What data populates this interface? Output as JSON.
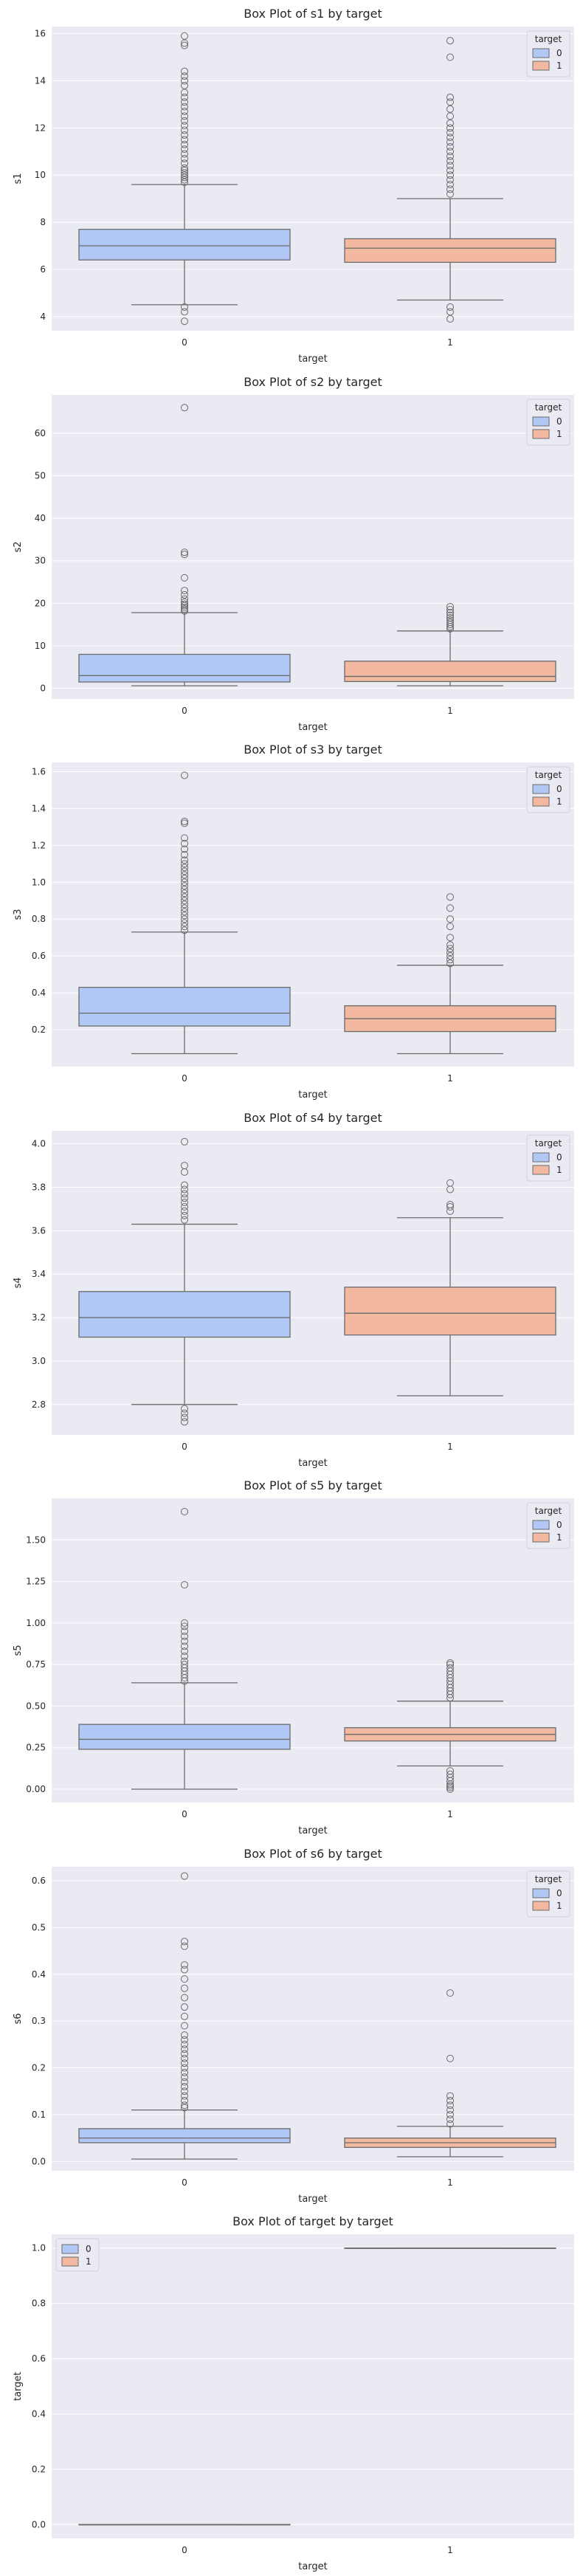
{
  "colors": {
    "plot_bg": "#eaeaf2",
    "grid": "#ffffff",
    "box_0": "#b1c8f6",
    "box_1": "#f2b8a0",
    "line": "#6b6b6b",
    "text": "#262626"
  },
  "chart_data": [
    {
      "type": "box",
      "title": "Box Plot of s1 by target",
      "xlabel": "target",
      "ylabel": "s1",
      "categories": [
        "0",
        "1"
      ],
      "ylim": [
        3.4,
        16.3
      ],
      "yticks": [
        4,
        6,
        8,
        10,
        12,
        14,
        16
      ],
      "ytick_labels": [
        "4",
        "6",
        "8",
        "10",
        "12",
        "14",
        "16"
      ],
      "legend": {
        "title": "target",
        "entries": [
          "0",
          "1"
        ],
        "position": "top-right"
      },
      "boxes": [
        {
          "category": "0",
          "whisker_low": 4.5,
          "q1": 6.4,
          "median": 7.0,
          "q3": 7.7,
          "whisker_high": 9.6,
          "outliers": [
            3.8,
            4.2,
            4.4,
            9.7,
            9.8,
            9.9,
            10.0,
            10.1,
            10.2,
            10.3,
            10.5,
            10.7,
            10.9,
            11.1,
            11.3,
            11.5,
            11.7,
            11.9,
            12.1,
            12.3,
            12.5,
            12.7,
            12.9,
            13.1,
            13.3,
            13.5,
            13.8,
            14.0,
            14.2,
            14.4,
            15.5,
            15.6,
            15.9
          ]
        },
        {
          "category": "1",
          "whisker_low": 4.7,
          "q1": 6.3,
          "median": 6.9,
          "q3": 7.3,
          "whisker_high": 9.0,
          "outliers": [
            3.9,
            4.2,
            4.4,
            9.2,
            9.4,
            9.6,
            9.8,
            10.0,
            10.2,
            10.4,
            10.6,
            10.8,
            11.0,
            11.2,
            11.4,
            11.6,
            11.8,
            12.0,
            12.2,
            12.5,
            12.8,
            13.1,
            13.3,
            15.0,
            15.7
          ]
        }
      ]
    },
    {
      "type": "box",
      "title": "Box Plot of s2 by target",
      "xlabel": "target",
      "ylabel": "s2",
      "categories": [
        "0",
        "1"
      ],
      "ylim": [
        -2.5,
        69
      ],
      "yticks": [
        0,
        10,
        20,
        30,
        40,
        50,
        60
      ],
      "ytick_labels": [
        "0",
        "10",
        "20",
        "30",
        "40",
        "50",
        "60"
      ],
      "legend": {
        "title": "target",
        "entries": [
          "0",
          "1"
        ],
        "position": "top-right"
      },
      "boxes": [
        {
          "category": "0",
          "whisker_low": 0.6,
          "q1": 1.5,
          "median": 3.0,
          "q3": 8.0,
          "whisker_high": 17.8,
          "outliers": [
            18.2,
            18.6,
            19.0,
            19.4,
            19.8,
            20.3,
            21.0,
            22.0,
            23.0,
            26.0,
            31.5,
            32.0,
            66.0
          ]
        },
        {
          "category": "1",
          "whisker_low": 0.6,
          "q1": 1.6,
          "median": 2.8,
          "q3": 6.4,
          "whisker_high": 13.5,
          "outliers": [
            14.0,
            14.5,
            15.0,
            15.5,
            16.0,
            16.6,
            17.2,
            17.8,
            18.5,
            19.2
          ]
        }
      ]
    },
    {
      "type": "box",
      "title": "Box Plot of s3 by target",
      "xlabel": "target",
      "ylabel": "s3",
      "categories": [
        "0",
        "1"
      ],
      "ylim": [
        0.0,
        1.65
      ],
      "yticks": [
        0.2,
        0.4,
        0.6,
        0.8,
        1.0,
        1.2,
        1.4,
        1.6
      ],
      "ytick_labels": [
        "0.2",
        "0.4",
        "0.6",
        "0.8",
        "1.0",
        "1.2",
        "1.4",
        "1.6"
      ],
      "legend": {
        "title": "target",
        "entries": [
          "0",
          "1"
        ],
        "position": "top-right"
      },
      "boxes": [
        {
          "category": "0",
          "whisker_low": 0.07,
          "q1": 0.22,
          "median": 0.29,
          "q3": 0.43,
          "whisker_high": 0.73,
          "outliers": [
            0.74,
            0.76,
            0.78,
            0.8,
            0.82,
            0.84,
            0.86,
            0.88,
            0.9,
            0.92,
            0.94,
            0.96,
            0.98,
            1.0,
            1.02,
            1.04,
            1.06,
            1.08,
            1.1,
            1.12,
            1.15,
            1.18,
            1.21,
            1.24,
            1.32,
            1.33,
            1.58
          ]
        },
        {
          "category": "1",
          "whisker_low": 0.07,
          "q1": 0.19,
          "median": 0.26,
          "q3": 0.33,
          "whisker_high": 0.55,
          "outliers": [
            0.56,
            0.58,
            0.6,
            0.62,
            0.64,
            0.66,
            0.7,
            0.76,
            0.8,
            0.86,
            0.92
          ]
        }
      ]
    },
    {
      "type": "box",
      "title": "Box Plot of s4 by target",
      "xlabel": "target",
      "ylabel": "s4",
      "categories": [
        "0",
        "1"
      ],
      "ylim": [
        2.66,
        4.06
      ],
      "yticks": [
        2.8,
        3.0,
        3.2,
        3.4,
        3.6,
        3.8,
        4.0
      ],
      "ytick_labels": [
        "2.8",
        "3.0",
        "3.2",
        "3.4",
        "3.6",
        "3.8",
        "4.0"
      ],
      "legend": {
        "title": "target",
        "entries": [
          "0",
          "1"
        ],
        "position": "top-right"
      },
      "boxes": [
        {
          "category": "0",
          "whisker_low": 2.8,
          "q1": 3.11,
          "median": 3.2,
          "q3": 3.32,
          "whisker_high": 3.63,
          "outliers": [
            2.72,
            2.74,
            2.76,
            2.78,
            3.65,
            3.67,
            3.69,
            3.71,
            3.73,
            3.75,
            3.77,
            3.79,
            3.81,
            3.87,
            3.9,
            4.01
          ]
        },
        {
          "category": "1",
          "whisker_low": 2.84,
          "q1": 3.12,
          "median": 3.22,
          "q3": 3.34,
          "whisker_high": 3.66,
          "outliers": [
            3.69,
            3.71,
            3.72,
            3.79,
            3.82
          ]
        }
      ]
    },
    {
      "type": "box",
      "title": "Box Plot of s5 by target",
      "xlabel": "target",
      "ylabel": "s5",
      "categories": [
        "0",
        "1"
      ],
      "ylim": [
        -0.08,
        1.75
      ],
      "yticks": [
        0.0,
        0.25,
        0.5,
        0.75,
        1.0,
        1.25,
        1.5
      ],
      "ytick_labels": [
        "0.00",
        "0.25",
        "0.50",
        "0.75",
        "1.00",
        "1.25",
        "1.50"
      ],
      "legend": {
        "title": "target",
        "entries": [
          "0",
          "1"
        ],
        "position": "top-right"
      },
      "boxes": [
        {
          "category": "0",
          "whisker_low": 0.0,
          "q1": 0.24,
          "median": 0.3,
          "q3": 0.39,
          "whisker_high": 0.64,
          "outliers": [
            0.65,
            0.67,
            0.69,
            0.71,
            0.73,
            0.75,
            0.77,
            0.8,
            0.83,
            0.86,
            0.89,
            0.92,
            0.95,
            0.98,
            1.0,
            1.23,
            1.67
          ]
        },
        {
          "category": "1",
          "whisker_low": 0.14,
          "q1": 0.29,
          "median": 0.33,
          "q3": 0.37,
          "whisker_high": 0.53,
          "outliers": [
            0.0,
            0.01,
            0.02,
            0.03,
            0.05,
            0.07,
            0.09,
            0.11,
            0.55,
            0.57,
            0.59,
            0.61,
            0.63,
            0.65,
            0.67,
            0.69,
            0.71,
            0.73,
            0.75,
            0.76
          ]
        }
      ]
    },
    {
      "type": "box",
      "title": "Box Plot of s6 by target",
      "xlabel": "target",
      "ylabel": "s6",
      "categories": [
        "0",
        "1"
      ],
      "ylim": [
        -0.02,
        0.63
      ],
      "yticks": [
        0.0,
        0.1,
        0.2,
        0.3,
        0.4,
        0.5,
        0.6
      ],
      "ytick_labels": [
        "0.0",
        "0.1",
        "0.2",
        "0.3",
        "0.4",
        "0.5",
        "0.6"
      ],
      "legend": {
        "title": "target",
        "entries": [
          "0",
          "1"
        ],
        "position": "top-right"
      },
      "boxes": [
        {
          "category": "0",
          "whisker_low": 0.005,
          "q1": 0.04,
          "median": 0.05,
          "q3": 0.07,
          "whisker_high": 0.11,
          "outliers": [
            0.115,
            0.12,
            0.13,
            0.14,
            0.15,
            0.16,
            0.17,
            0.18,
            0.19,
            0.2,
            0.21,
            0.22,
            0.23,
            0.24,
            0.25,
            0.26,
            0.27,
            0.29,
            0.31,
            0.33,
            0.35,
            0.37,
            0.39,
            0.41,
            0.42,
            0.46,
            0.47,
            0.61
          ]
        },
        {
          "category": "1",
          "whisker_low": 0.01,
          "q1": 0.03,
          "median": 0.04,
          "q3": 0.05,
          "whisker_high": 0.075,
          "outliers": [
            0.08,
            0.09,
            0.1,
            0.11,
            0.12,
            0.13,
            0.14,
            0.22,
            0.36
          ]
        }
      ]
    },
    {
      "type": "box",
      "title": "Box Plot of target by target",
      "xlabel": "target",
      "ylabel": "target",
      "categories": [
        "0",
        "1"
      ],
      "ylim": [
        -0.05,
        1.05
      ],
      "yticks": [
        0.0,
        0.2,
        0.4,
        0.6,
        0.8,
        1.0
      ],
      "ytick_labels": [
        "0.0",
        "0.2",
        "0.4",
        "0.6",
        "0.8",
        "1.0"
      ],
      "legend": {
        "title": "",
        "entries": [
          "0",
          "1"
        ],
        "position": "top-left"
      },
      "boxes": [
        {
          "category": "0",
          "whisker_low": 0.0,
          "q1": 0.0,
          "median": 0.0,
          "q3": 0.0,
          "whisker_high": 0.0,
          "outliers": []
        },
        {
          "category": "1",
          "whisker_low": 1.0,
          "q1": 1.0,
          "median": 1.0,
          "q3": 1.0,
          "whisker_high": 1.0,
          "outliers": []
        }
      ]
    }
  ]
}
